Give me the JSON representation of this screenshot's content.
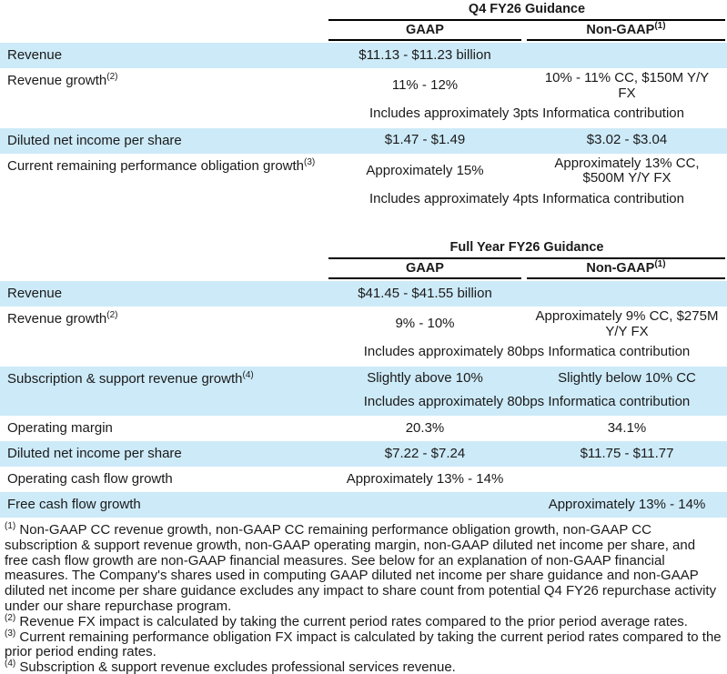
{
  "page": {
    "band_color": "#cdeaf8",
    "text_color": "#1a1a1a",
    "rule_color": "#000000"
  },
  "tables": [
    {
      "title": "Q4 FY26 Guidance",
      "columns": {
        "gaap": "GAAP",
        "nongaap": "Non-GAAP",
        "nongaap_sup": "(1)"
      },
      "rows": [
        {
          "label": "Revenue",
          "sup": "",
          "gaap": [
            "$11.13 - $11.23 billion"
          ],
          "nongaap": [],
          "note": "",
          "shaded": true
        },
        {
          "label": "Revenue growth",
          "sup": "(2)",
          "gaap": [
            "11% - 12%"
          ],
          "nongaap": [
            "10% - 11% CC, $150M Y/Y",
            "FX"
          ],
          "note": "Includes approximately 3pts Informatica contribution",
          "shaded": false
        },
        {
          "label": "Diluted net income per share",
          "sup": "",
          "gaap": [
            "$1.47 - $1.49"
          ],
          "nongaap": [
            "$3.02 - $3.04"
          ],
          "note": "",
          "shaded": true
        },
        {
          "label": "Current remaining performance obligation growth",
          "sup": "(3)",
          "gaap": [
            "Approximately 15%"
          ],
          "nongaap": [
            "Approximately 13% CC,",
            "$500M Y/Y FX"
          ],
          "note": "Includes approximately 4pts Informatica contribution",
          "shaded": false
        }
      ]
    },
    {
      "title": "Full Year FY26 Guidance",
      "columns": {
        "gaap": "GAAP",
        "nongaap": "Non-GAAP",
        "nongaap_sup": "(1)"
      },
      "rows": [
        {
          "label": "Revenue",
          "sup": "",
          "gaap": [
            "$41.45 - $41.55 billion"
          ],
          "nongaap": [],
          "note": "",
          "shaded": true
        },
        {
          "label": "Revenue growth",
          "sup": "(2)",
          "gaap": [
            "9% - 10%"
          ],
          "nongaap": [
            "Approximately 9% CC, $275M",
            "Y/Y FX"
          ],
          "note": "Includes approximately 80bps Informatica contribution",
          "shaded": false
        },
        {
          "label": "Subscription & support revenue growth",
          "sup": "(4)",
          "gaap": [
            "Slightly above 10%"
          ],
          "nongaap": [
            "Slightly below 10% CC"
          ],
          "note": "Includes approximately 80bps Informatica contribution",
          "shaded": true
        },
        {
          "label": "Operating margin",
          "sup": "",
          "gaap": [
            "20.3%"
          ],
          "nongaap": [
            "34.1%"
          ],
          "note": "",
          "shaded": false
        },
        {
          "label": "Diluted net income per share",
          "sup": "",
          "gaap": [
            "$7.22 - $7.24"
          ],
          "nongaap": [
            "$11.75 - $11.77"
          ],
          "note": "",
          "shaded": true
        },
        {
          "label": "Operating cash flow growth",
          "sup": "",
          "gaap": [
            "Approximately 13% - 14%"
          ],
          "nongaap": [],
          "note": "",
          "shaded": false
        },
        {
          "label": "Free cash flow growth",
          "sup": "",
          "gaap": [],
          "nongaap": [
            "Approximately 13% - 14%"
          ],
          "note": "",
          "shaded": true
        }
      ]
    }
  ],
  "footnotes": [
    {
      "marker": "(1)",
      "text": "Non-GAAP CC revenue growth, non-GAAP CC remaining performance obligation growth, non-GAAP CC subscription & support revenue growth, non-GAAP operating margin, non-GAAP diluted net income per share, and free cash flow growth are non-GAAP financial measures. See below for an explanation of non-GAAP financial measures. The Company's shares used in computing GAAP diluted net income per share guidance and non-GAAP diluted net income per share guidance excludes any impact to share count from potential Q4 FY26 repurchase activity under our share repurchase program."
    },
    {
      "marker": "(2)",
      "text": "Revenue FX impact is calculated by taking the current period rates compared to the prior period average rates."
    },
    {
      "marker": "(3)",
      "text": "Current remaining performance obligation FX impact is calculated by taking the current period rates compared to the prior period ending rates."
    },
    {
      "marker": "(4)",
      "text": "Subscription & support revenue excludes professional services revenue."
    }
  ]
}
